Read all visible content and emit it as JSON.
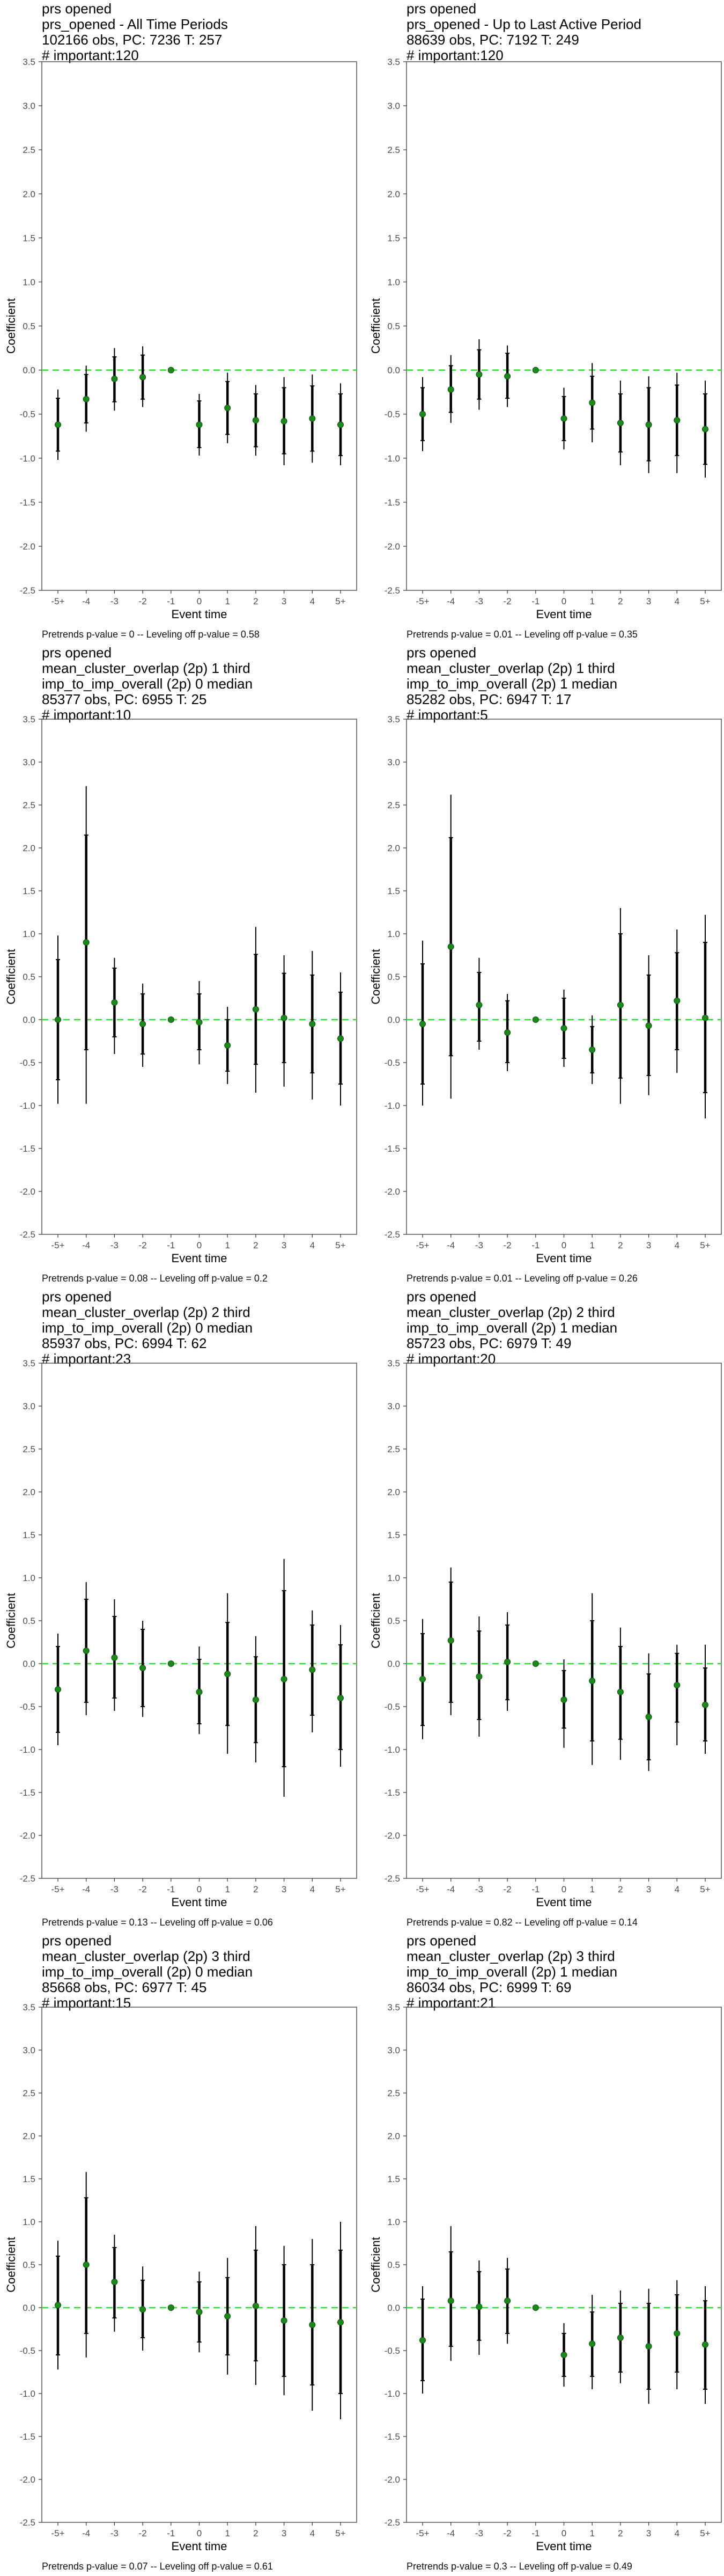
{
  "chart_data": [
    {
      "type": "scatter",
      "title_lines": [
        "prs opened",
        "prs_opened - All Time Periods",
        "102166 obs, PC: 7236 T: 257",
        "# important:120"
      ],
      "xlabel": "Event time",
      "ylabel": "Coefficient",
      "categories": [
        "-5+",
        "-4",
        "-3",
        "-2",
        "-1",
        "0",
        "1",
        "2",
        "3",
        "4",
        "5+"
      ],
      "ylim": [
        -2.5,
        3.5
      ],
      "yticks": [
        "-2.5",
        "-2.0",
        "-1.5",
        "-1.0",
        "-0.5",
        "0.0",
        "0.5",
        "1.0",
        "1.5",
        "2.0",
        "2.5",
        "3.0",
        "3.5"
      ],
      "estimates": [
        -0.62,
        -0.33,
        -0.1,
        -0.08,
        0,
        -0.62,
        -0.43,
        -0.57,
        -0.58,
        -0.55,
        -0.62
      ],
      "ci90_low": [
        -0.92,
        -0.6,
        -0.36,
        -0.33,
        0,
        -0.88,
        -0.73,
        -0.87,
        -0.95,
        -0.92,
        -0.97
      ],
      "ci90_high": [
        -0.32,
        -0.05,
        0.15,
        0.17,
        0,
        -0.35,
        -0.13,
        -0.27,
        -0.2,
        -0.18,
        -0.27
      ],
      "ci95_low": [
        -1.02,
        -0.7,
        -0.46,
        -0.42,
        0,
        -0.97,
        -0.83,
        -0.97,
        -1.08,
        -1.05,
        -1.08
      ],
      "ci95_high": [
        -0.22,
        0.05,
        0.25,
        0.27,
        0,
        -0.27,
        -0.03,
        -0.17,
        -0.08,
        -0.05,
        -0.15
      ],
      "footnote": "Pretrends p-value = 0 -- Leveling off p-value = 0.58"
    },
    {
      "type": "scatter",
      "title_lines": [
        "prs opened",
        "prs_opened - Up to Last Active Period",
        "88639 obs, PC: 7192 T: 249",
        "# important:120"
      ],
      "xlabel": "Event time",
      "ylabel": "Coefficient",
      "categories": [
        "-5+",
        "-4",
        "-3",
        "-2",
        "-1",
        "0",
        "1",
        "2",
        "3",
        "4",
        "5+"
      ],
      "ylim": [
        -2.5,
        3.5
      ],
      "yticks": [
        "-2.5",
        "-2.0",
        "-1.5",
        "-1.0",
        "-0.5",
        "0.0",
        "0.5",
        "1.0",
        "1.5",
        "2.0",
        "2.5",
        "3.0",
        "3.5"
      ],
      "estimates": [
        -0.5,
        -0.22,
        -0.05,
        -0.07,
        0,
        -0.55,
        -0.37,
        -0.6,
        -0.62,
        -0.57,
        -0.67
      ],
      "ci90_low": [
        -0.8,
        -0.48,
        -0.33,
        -0.32,
        0,
        -0.8,
        -0.67,
        -0.93,
        -1.03,
        -0.97,
        -1.07
      ],
      "ci90_high": [
        -0.2,
        0.05,
        0.23,
        0.19,
        0,
        -0.3,
        -0.07,
        -0.27,
        -0.2,
        -0.17,
        -0.27
      ],
      "ci95_low": [
        -0.92,
        -0.6,
        -0.45,
        -0.42,
        0,
        -0.9,
        -0.82,
        -1.08,
        -1.17,
        -1.17,
        -1.22
      ],
      "ci95_high": [
        -0.08,
        0.17,
        0.35,
        0.28,
        0,
        -0.2,
        0.08,
        -0.12,
        -0.07,
        -0.03,
        -0.12
      ],
      "footnote": "Pretrends p-value = 0.01 -- Leveling off p-value = 0.35"
    },
    {
      "type": "scatter",
      "title_lines": [
        "prs opened",
        "mean_cluster_overlap (2p) 1 third",
        "imp_to_imp_overall (2p) 0 median",
        "85377 obs, PC: 6955 T: 25",
        "# important:10"
      ],
      "xlabel": "Event time",
      "ylabel": "Coefficient",
      "categories": [
        "-5+",
        "-4",
        "-3",
        "-2",
        "-1",
        "0",
        "1",
        "2",
        "3",
        "4",
        "5+"
      ],
      "ylim": [
        -2.5,
        3.5
      ],
      "yticks": [
        "-2.5",
        "-2.0",
        "-1.5",
        "-1.0",
        "-0.5",
        "0.0",
        "0.5",
        "1.0",
        "1.5",
        "2.0",
        "2.5",
        "3.0",
        "3.5"
      ],
      "estimates": [
        0.0,
        0.9,
        0.2,
        -0.05,
        0,
        -0.03,
        -0.3,
        0.12,
        0.02,
        -0.05,
        -0.22
      ],
      "ci90_low": [
        -0.7,
        -0.35,
        -0.2,
        -0.4,
        0,
        -0.35,
        -0.6,
        -0.52,
        -0.5,
        -0.62,
        -0.75
      ],
      "ci90_high": [
        0.7,
        2.15,
        0.6,
        0.3,
        0,
        0.3,
        0.0,
        0.76,
        0.54,
        0.52,
        0.32
      ],
      "ci95_low": [
        -0.98,
        -0.98,
        -0.4,
        -0.55,
        0,
        -0.52,
        -0.75,
        -0.85,
        -0.78,
        -0.93,
        -1.0
      ],
      "ci95_high": [
        0.98,
        2.72,
        0.72,
        0.42,
        0,
        0.45,
        0.15,
        1.08,
        0.75,
        0.8,
        0.55
      ],
      "footnote": "Pretrends p-value = 0.08 -- Leveling off p-value = 0.2"
    },
    {
      "type": "scatter",
      "title_lines": [
        "prs opened",
        "mean_cluster_overlap (2p) 1 third",
        "imp_to_imp_overall (2p) 1 median",
        "85282 obs, PC: 6947 T: 17",
        "# important:5"
      ],
      "xlabel": "Event time",
      "ylabel": "Coefficient",
      "categories": [
        "-5+",
        "-4",
        "-3",
        "-2",
        "-1",
        "0",
        "1",
        "2",
        "3",
        "4",
        "5+"
      ],
      "ylim": [
        -2.5,
        3.5
      ],
      "yticks": [
        "-2.5",
        "-2.0",
        "-1.5",
        "-1.0",
        "-0.5",
        "0.0",
        "0.5",
        "1.0",
        "1.5",
        "2.0",
        "2.5",
        "3.0",
        "3.5"
      ],
      "estimates": [
        -0.05,
        0.85,
        0.17,
        -0.15,
        0,
        -0.1,
        -0.35,
        0.17,
        -0.07,
        0.22,
        0.02
      ],
      "ci90_low": [
        -0.75,
        -0.42,
        -0.25,
        -0.5,
        0,
        -0.45,
        -0.62,
        -0.68,
        -0.65,
        -0.35,
        -0.85
      ],
      "ci90_high": [
        0.65,
        2.12,
        0.55,
        0.22,
        0,
        0.25,
        -0.08,
        1.0,
        0.52,
        0.78,
        0.9
      ],
      "ci95_low": [
        -1.0,
        -0.92,
        -0.35,
        -0.6,
        0,
        -0.55,
        -0.75,
        -0.98,
        -0.88,
        -0.62,
        -1.15
      ],
      "ci95_high": [
        0.92,
        2.62,
        0.72,
        0.3,
        0,
        0.35,
        0.05,
        1.3,
        0.75,
        1.05,
        1.22
      ],
      "footnote": "Pretrends p-value = 0.01 -- Leveling off p-value = 0.26"
    },
    {
      "type": "scatter",
      "title_lines": [
        "prs opened",
        "mean_cluster_overlap (2p) 2 third",
        "imp_to_imp_overall (2p) 0 median",
        "85937 obs, PC: 6994 T: 62",
        "# important:23"
      ],
      "xlabel": "Event time",
      "ylabel": "Coefficient",
      "categories": [
        "-5+",
        "-4",
        "-3",
        "-2",
        "-1",
        "0",
        "1",
        "2",
        "3",
        "4",
        "5+"
      ],
      "ylim": [
        -2.5,
        3.5
      ],
      "yticks": [
        "-2.5",
        "-2.0",
        "-1.5",
        "-1.0",
        "-0.5",
        "0.0",
        "0.5",
        "1.0",
        "1.5",
        "2.0",
        "2.5",
        "3.0",
        "3.5"
      ],
      "estimates": [
        -0.3,
        0.15,
        0.07,
        -0.05,
        0,
        -0.33,
        -0.12,
        -0.42,
        -0.18,
        -0.07,
        -0.4
      ],
      "ci90_low": [
        -0.8,
        -0.45,
        -0.4,
        -0.5,
        0,
        -0.7,
        -0.72,
        -0.92,
        -1.2,
        -0.6,
        -1.0
      ],
      "ci90_high": [
        0.2,
        0.75,
        0.55,
        0.4,
        0,
        0.05,
        0.48,
        0.08,
        0.85,
        0.45,
        0.22
      ],
      "ci95_low": [
        -0.95,
        -0.6,
        -0.55,
        -0.62,
        0,
        -0.82,
        -1.05,
        -1.15,
        -1.55,
        -0.8,
        -1.2
      ],
      "ci95_high": [
        0.35,
        0.95,
        0.75,
        0.5,
        0,
        0.2,
        0.82,
        0.32,
        1.22,
        0.62,
        0.45
      ],
      "footnote": "Pretrends p-value = 0.13 -- Leveling off p-value = 0.06"
    },
    {
      "type": "scatter",
      "title_lines": [
        "prs opened",
        "mean_cluster_overlap (2p) 2 third",
        "imp_to_imp_overall (2p) 1 median",
        "85723 obs, PC: 6979 T: 49",
        "# important:20"
      ],
      "xlabel": "Event time",
      "ylabel": "Coefficient",
      "categories": [
        "-5+",
        "-4",
        "-3",
        "-2",
        "-1",
        "0",
        "1",
        "2",
        "3",
        "4",
        "5+"
      ],
      "ylim": [
        -2.5,
        3.5
      ],
      "yticks": [
        "-2.5",
        "-2.0",
        "-1.5",
        "-1.0",
        "-0.5",
        "0.0",
        "0.5",
        "1.0",
        "1.5",
        "2.0",
        "2.5",
        "3.0",
        "3.5"
      ],
      "estimates": [
        -0.18,
        0.27,
        -0.15,
        0.02,
        0,
        -0.42,
        -0.2,
        -0.33,
        -0.62,
        -0.25,
        -0.48
      ],
      "ci90_low": [
        -0.72,
        -0.45,
        -0.65,
        -0.42,
        0,
        -0.75,
        -0.9,
        -0.88,
        -1.12,
        -0.68,
        -0.9
      ],
      "ci90_high": [
        0.35,
        0.95,
        0.38,
        0.45,
        0,
        -0.08,
        0.5,
        0.2,
        -0.12,
        0.12,
        -0.05
      ],
      "ci95_low": [
        -0.88,
        -0.6,
        -0.85,
        -0.55,
        0,
        -0.98,
        -1.18,
        -1.12,
        -1.25,
        -0.95,
        -1.05
      ],
      "ci95_high": [
        0.52,
        1.12,
        0.55,
        0.6,
        0,
        0.05,
        0.82,
        0.42,
        0.12,
        0.22,
        0.22
      ],
      "footnote": "Pretrends p-value = 0.82 -- Leveling off p-value = 0.14"
    },
    {
      "type": "scatter",
      "title_lines": [
        "prs opened",
        "mean_cluster_overlap (2p) 3 third",
        "imp_to_imp_overall (2p) 0 median",
        "85668 obs, PC: 6977 T: 45",
        "# important:15"
      ],
      "xlabel": "Event time",
      "ylabel": "Coefficient",
      "categories": [
        "-5+",
        "-4",
        "-3",
        "-2",
        "-1",
        "0",
        "1",
        "2",
        "3",
        "4",
        "5+"
      ],
      "ylim": [
        -2.5,
        3.5
      ],
      "yticks": [
        "-2.5",
        "-2.0",
        "-1.5",
        "-1.0",
        "-0.5",
        "0.0",
        "0.5",
        "1.0",
        "1.5",
        "2.0",
        "2.5",
        "3.0",
        "3.5"
      ],
      "estimates": [
        0.03,
        0.5,
        0.3,
        -0.02,
        0,
        -0.05,
        -0.1,
        0.02,
        -0.15,
        -0.2,
        -0.17
      ],
      "ci90_low": [
        -0.55,
        -0.3,
        -0.12,
        -0.35,
        0,
        -0.4,
        -0.55,
        -0.62,
        -0.8,
        -0.9,
        -1.0
      ],
      "ci90_high": [
        0.6,
        1.28,
        0.7,
        0.32,
        0,
        0.3,
        0.35,
        0.67,
        0.5,
        0.5,
        0.67
      ],
      "ci95_low": [
        -0.72,
        -0.58,
        -0.28,
        -0.5,
        0,
        -0.52,
        -0.78,
        -0.9,
        -1.02,
        -1.2,
        -1.3
      ],
      "ci95_high": [
        0.78,
        1.58,
        0.85,
        0.48,
        0,
        0.42,
        0.58,
        0.95,
        0.72,
        0.8,
        1.0
      ],
      "footnote": "Pretrends p-value = 0.07 -- Leveling off p-value = 0.61"
    },
    {
      "type": "scatter",
      "title_lines": [
        "prs opened",
        "mean_cluster_overlap (2p) 3 third",
        "imp_to_imp_overall (2p) 1 median",
        "86034 obs, PC: 6999 T: 69",
        "# important:21"
      ],
      "xlabel": "Event time",
      "ylabel": "Coefficient",
      "categories": [
        "-5+",
        "-4",
        "-3",
        "-2",
        "-1",
        "0",
        "1",
        "2",
        "3",
        "4",
        "5+"
      ],
      "ylim": [
        -2.5,
        3.5
      ],
      "yticks": [
        "-2.5",
        "-2.0",
        "-1.5",
        "-1.0",
        "-0.5",
        "0.0",
        "0.5",
        "1.0",
        "1.5",
        "2.0",
        "2.5",
        "3.0",
        "3.5"
      ],
      "estimates": [
        -0.38,
        0.08,
        0.01,
        0.08,
        0,
        -0.55,
        -0.42,
        -0.35,
        -0.45,
        -0.3,
        -0.43
      ],
      "ci90_low": [
        -0.85,
        -0.45,
        -0.38,
        -0.3,
        0,
        -0.8,
        -0.8,
        -0.75,
        -0.95,
        -0.75,
        -0.95
      ],
      "ci90_high": [
        0.1,
        0.65,
        0.42,
        0.45,
        0,
        -0.3,
        -0.05,
        0.05,
        0.05,
        0.15,
        0.08
      ],
      "ci95_low": [
        -1.0,
        -0.62,
        -0.55,
        -0.42,
        0,
        -0.92,
        -0.95,
        -0.88,
        -1.12,
        -0.95,
        -1.12
      ],
      "ci95_high": [
        0.25,
        0.95,
        0.55,
        0.58,
        0,
        -0.18,
        0.15,
        0.2,
        0.22,
        0.32,
        0.25
      ],
      "footnote": "Pretrends p-value = 0.3 -- Leveling off p-value = 0.49"
    }
  ],
  "colors": {
    "zero_line": "#33dd33",
    "point": "#1a8a1a",
    "error_bar": "#000000",
    "axis_text": "#4d4d4d",
    "panel_border": "#555555"
  }
}
